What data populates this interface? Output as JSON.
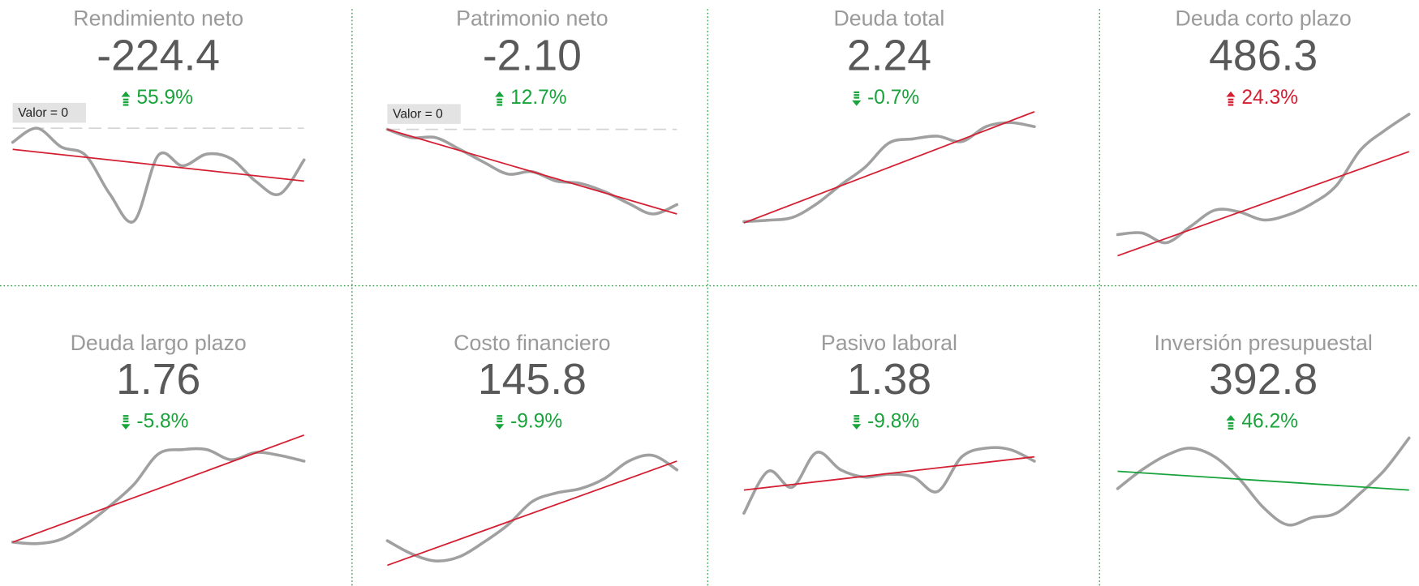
{
  "chart_data": [
    {
      "type": "sparkline",
      "title": "Rendimiento neto",
      "value": {
        "value": -224.4,
        "label": "-224.4"
      },
      "change": {
        "value": 55.9,
        "label": "55.9%"
      },
      "direction": "up",
      "change_color": "#19a33b",
      "values": [
        79,
        91,
        75,
        68,
        35,
        12,
        68,
        59,
        69,
        65,
        46,
        35,
        64
      ],
      "ylim": [
        0,
        100
      ],
      "line_color": "#a0a0a0",
      "trend": [
        73,
        46
      ],
      "trend_color": "#d41f33",
      "ref_line": {
        "value": 91,
        "label": "Valor = 0"
      }
    },
    {
      "type": "sparkline",
      "title": "Patrimonio neto",
      "value": {
        "value": -2.1,
        "label": "-2.10"
      },
      "change": {
        "value": 12.7,
        "label": "12.7%"
      },
      "direction": "up",
      "change_color": "#19a33b",
      "values": [
        90,
        83,
        83,
        73,
        62,
        52,
        54,
        46,
        44,
        37,
        27,
        18,
        26
      ],
      "ylim": [
        0,
        100
      ],
      "line_color": "#a0a0a0",
      "trend": [
        90,
        18
      ],
      "trend_color": "#d41f33",
      "ref_line": {
        "value": 90,
        "label": "Valor = 0"
      }
    },
    {
      "type": "sparkline",
      "title": "Deuda total",
      "value": {
        "value": 2.24,
        "label": "2.24"
      },
      "change": {
        "value": -0.7,
        "label": "-0.7%"
      },
      "direction": "down",
      "change_color": "#19a33b",
      "values": [
        10,
        11,
        13,
        23,
        37,
        50,
        68,
        71,
        73,
        69,
        80,
        83,
        80
      ],
      "ylim": [
        0,
        100
      ],
      "line_color": "#a0a0a0",
      "trend": [
        9,
        91
      ],
      "trend_color": "#d41f33"
    },
    {
      "type": "sparkline",
      "title": "Deuda corto plazo",
      "value": {
        "value": 486.3,
        "label": "486.3"
      },
      "change": {
        "value": 24.3,
        "label": "24.3%"
      },
      "direction": "up",
      "change_color": "#d41f33",
      "values": [
        17,
        18,
        12,
        22,
        32,
        31,
        26,
        29,
        36,
        47,
        69,
        81,
        91
      ],
      "ylim": [
        0,
        100
      ],
      "line_color": "#a0a0a0",
      "trend": [
        4,
        68
      ],
      "trend_color": "#d41f33"
    },
    {
      "type": "sparkline",
      "title": "Deuda largo plazo",
      "value": {
        "value": 1.76,
        "label": "1.76"
      },
      "change": {
        "value": -5.8,
        "label": "-5.8%"
      },
      "direction": "down",
      "change_color": "#19a33b",
      "values": [
        19,
        18,
        21,
        31,
        44,
        59,
        80,
        83,
        83,
        76,
        81,
        79,
        75
      ],
      "ylim": [
        0,
        100
      ],
      "line_color": "#a0a0a0",
      "trend": [
        19,
        93
      ],
      "trend_color": "#d41f33"
    },
    {
      "type": "sparkline",
      "title": "Costo financiero",
      "value": {
        "value": 145.8,
        "label": "145.8"
      },
      "change": {
        "value": -9.9,
        "label": "-9.9%"
      },
      "direction": "down",
      "change_color": "#19a33b",
      "values": [
        20,
        11,
        6,
        9,
        19,
        31,
        47,
        53,
        56,
        63,
        75,
        79,
        69
      ],
      "ylim": [
        0,
        100
      ],
      "line_color": "#a0a0a0",
      "trend": [
        3,
        75
      ],
      "trend_color": "#d41f33"
    },
    {
      "type": "sparkline",
      "title": "Pasivo laboral",
      "value": {
        "value": 1.38,
        "label": "1.38"
      },
      "change": {
        "value": -9.8,
        "label": "-9.8%"
      },
      "direction": "down",
      "change_color": "#19a33b",
      "values": [
        39,
        68,
        57,
        81,
        69,
        64,
        66,
        64,
        54,
        78,
        84,
        83,
        75
      ],
      "ylim": [
        0,
        100
      ],
      "line_color": "#a0a0a0",
      "trend": [
        55,
        78
      ],
      "trend_color": "#d41f33"
    },
    {
      "type": "sparkline",
      "title": "Inversión presupuestal",
      "value": {
        "value": 392.8,
        "label": "392.8"
      },
      "change": {
        "value": 46.2,
        "label": "46.2%"
      },
      "direction": "up",
      "change_color": "#19a33b",
      "values": [
        56,
        69,
        79,
        84,
        78,
        63,
        43,
        31,
        36,
        39,
        53,
        69,
        91
      ],
      "ylim": [
        0,
        100
      ],
      "line_color": "#a0a0a0",
      "trend": [
        68,
        55
      ],
      "trend_color": "#19a33b"
    }
  ]
}
